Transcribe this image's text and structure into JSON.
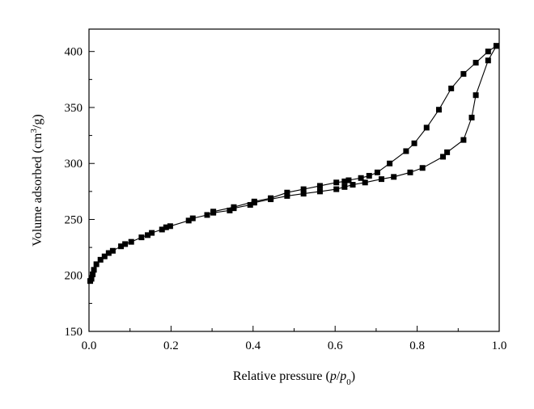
{
  "chart_data": {
    "type": "line",
    "title": "",
    "xlabel": "Relative pressure (p/p0)",
    "ylabel": "Volume adsorbed (cm3/g)",
    "xlim": [
      0.0,
      1.0
    ],
    "ylim": [
      150,
      420
    ],
    "x_ticks": [
      "0.0",
      "0.2",
      "0.4",
      "0.6",
      "0.8",
      "1.0"
    ],
    "y_ticks": [
      "150",
      "200",
      "250",
      "300",
      "350",
      "400"
    ],
    "grid": false,
    "legend": "none",
    "marker": "square",
    "color": "#000000",
    "series": [
      {
        "x": [
          0.003,
          0.006,
          0.009,
          0.012,
          0.018,
          0.028,
          0.038,
          0.048,
          0.058,
          0.078,
          0.088,
          0.103,
          0.128,
          0.143,
          0.153,
          0.178,
          0.188,
          0.198,
          0.243,
          0.253,
          0.288,
          0.303,
          0.343,
          0.353,
          0.393,
          0.403,
          0.443,
          0.483,
          0.523,
          0.563,
          0.603,
          0.623,
          0.643,
          0.673,
          0.713,
          0.743,
          0.783,
          0.813,
          0.863,
          0.873,
          0.913,
          0.933,
          0.943,
          0.973,
          0.993
        ],
        "y": [
          195,
          197,
          201,
          205,
          210,
          214,
          217,
          220,
          222,
          226,
          228,
          230,
          234,
          236,
          238,
          241,
          243,
          244,
          249,
          251,
          254,
          256,
          258,
          260,
          263,
          265,
          268,
          271,
          273,
          275,
          277,
          279,
          281,
          283,
          286,
          288,
          292,
          296,
          306,
          310,
          321,
          341,
          361,
          392,
          405
        ]
      },
      {
        "x": [
          0.993,
          0.973,
          0.943,
          0.913,
          0.883,
          0.853,
          0.823,
          0.793,
          0.773,
          0.733,
          0.703,
          0.683,
          0.663,
          0.633,
          0.623,
          0.603,
          0.563,
          0.523,
          0.483,
          0.443,
          0.403,
          0.353,
          0.303
        ],
        "y": [
          405,
          400,
          390,
          380,
          367,
          348,
          332,
          318,
          311,
          300,
          292,
          289,
          287,
          285,
          284,
          283,
          280,
          277,
          274,
          269,
          266,
          261,
          257
        ]
      }
    ]
  }
}
